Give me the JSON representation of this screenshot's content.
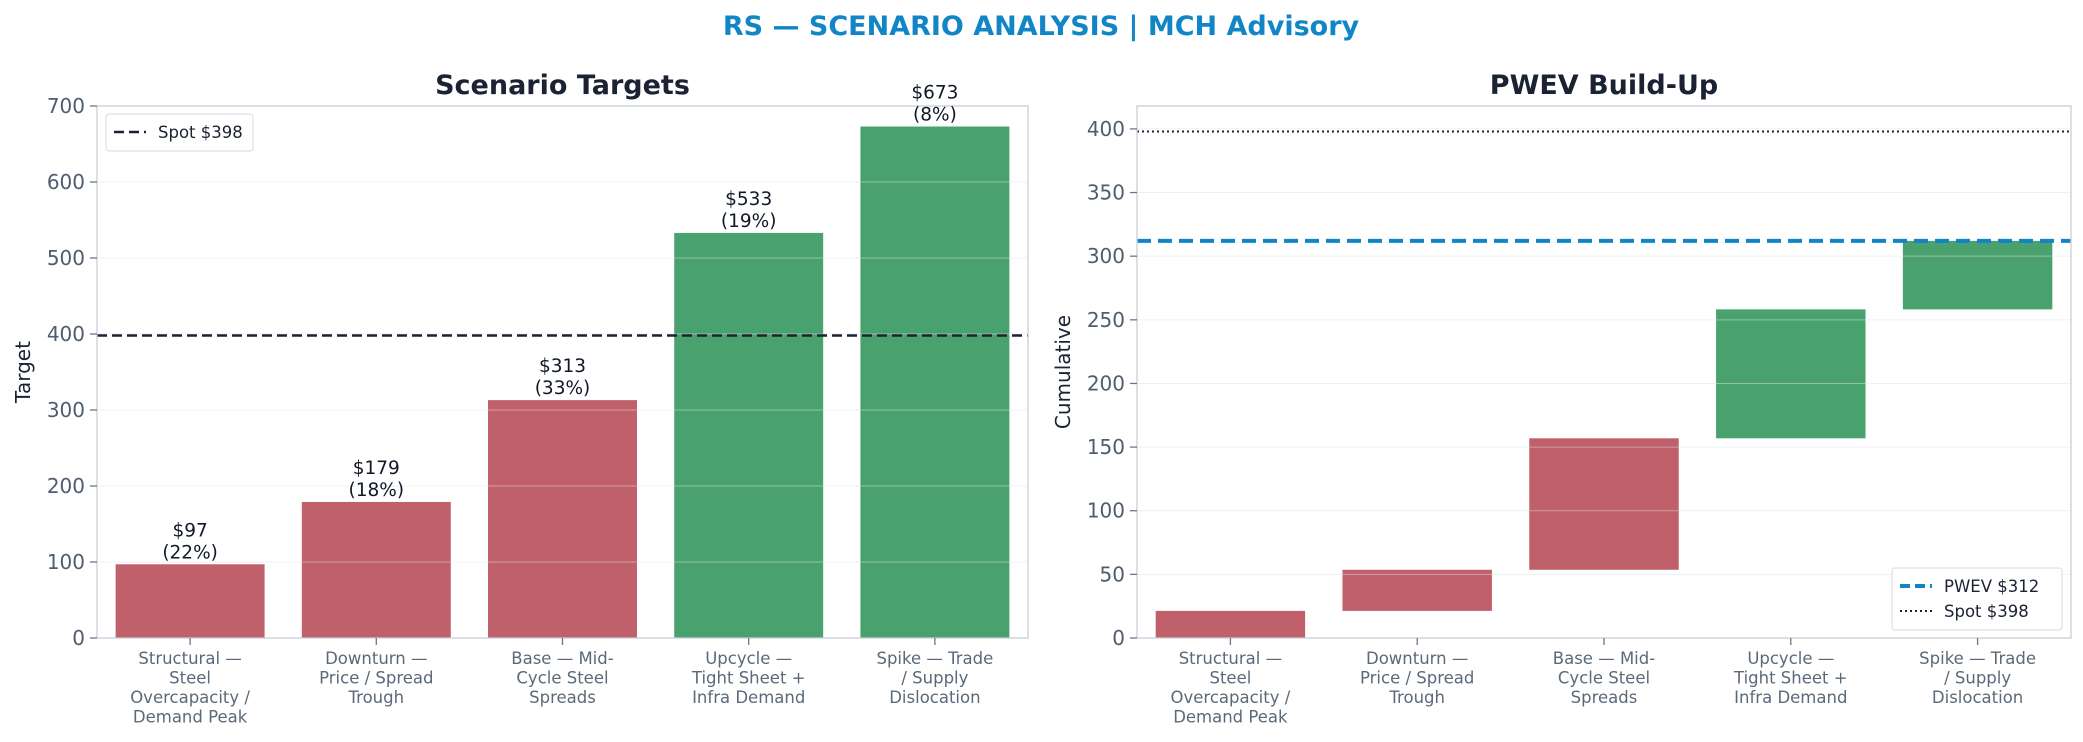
{
  "title": "RS — SCENARIO ANALYSIS | MCH Advisory",
  "colors": {
    "title": "#1185c6",
    "bear": "#c0606b",
    "bull": "#49a26d",
    "spot": "#1a2233",
    "pwev": "#1185c6",
    "axis": "#c8d0d8",
    "grid": "#eef1f4",
    "gridline_on_bar": "#e6e9ec"
  },
  "chart_data": [
    {
      "type": "bar",
      "title": "Scenario Targets",
      "ylabel": "Target",
      "xlabel": "",
      "ylim": [
        0,
        700
      ],
      "yticks": [
        0,
        100,
        200,
        300,
        400,
        500,
        600,
        700
      ],
      "categories": [
        "Structural — Steel Overcapacity / Demand Peak",
        "Downturn — Price / Spread Trough",
        "Base — Mid-Cycle Steel Spreads",
        "Upcycle — Tight Sheet + Infra Demand",
        "Spike — Trade / Supply Dislocation"
      ],
      "category_lines": [
        [
          "Structural —",
          "Steel",
          "Overcapacity /",
          "Demand Peak"
        ],
        [
          "Downturn —",
          "Price / Spread",
          "Trough"
        ],
        [
          "Base — Mid-",
          "Cycle Steel",
          "Spreads"
        ],
        [
          "Upcycle —",
          "Tight Sheet +",
          "Infra Demand"
        ],
        [
          "Spike — Trade",
          "/ Supply",
          "Dislocation"
        ]
      ],
      "values": [
        97,
        179,
        313,
        533,
        673
      ],
      "probabilities": [
        22,
        18,
        33,
        19,
        8
      ],
      "data_labels": [
        [
          "$97",
          "(22%)"
        ],
        [
          "$179",
          "(18%)"
        ],
        [
          "$313",
          "(33%)"
        ],
        [
          "$533",
          "(19%)"
        ],
        [
          "$673",
          "(8%)"
        ]
      ],
      "bar_colors": [
        "bear",
        "bear",
        "bear",
        "bull",
        "bull"
      ],
      "reference_lines": [
        {
          "label": "Spot $398",
          "y": 398,
          "style": "dashed"
        }
      ],
      "legend_position": "upper-left",
      "grid": true
    },
    {
      "type": "waterfall",
      "title": "PWEV Build-Up",
      "ylabel": "Cumulative",
      "xlabel": "",
      "ylim": [
        0,
        418
      ],
      "yticks": [
        0,
        50,
        100,
        150,
        200,
        250,
        300,
        350,
        400
      ],
      "categories": [
        "Structural — Steel Overcapacity / Demand Peak",
        "Downturn — Price / Spread Trough",
        "Base — Mid-Cycle Steel Spreads",
        "Upcycle — Tight Sheet + Infra Demand",
        "Spike — Trade / Supply Dislocation"
      ],
      "category_lines": [
        [
          "Structural —",
          "Steel",
          "Overcapacity /",
          "Demand Peak"
        ],
        [
          "Downturn —",
          "Price / Spread",
          "Trough"
        ],
        [
          "Base — Mid-",
          "Cycle Steel",
          "Spreads"
        ],
        [
          "Upcycle —",
          "Tight Sheet +",
          "Infra Demand"
        ],
        [
          "Spike — Trade",
          "/ Supply",
          "Dislocation"
        ]
      ],
      "bars": [
        {
          "bottom": 0,
          "top": 21.3
        },
        {
          "bottom": 21.3,
          "top": 53.6
        },
        {
          "bottom": 53.6,
          "top": 156.9
        },
        {
          "bottom": 156.9,
          "top": 258.2
        },
        {
          "bottom": 258.2,
          "top": 312.0
        }
      ],
      "bar_colors": [
        "bear",
        "bear",
        "bear",
        "bull",
        "bull"
      ],
      "reference_lines": [
        {
          "label": "PWEV $312",
          "y": 312,
          "style": "dashed-thick"
        },
        {
          "label": "Spot $398",
          "y": 398,
          "style": "dotted"
        }
      ],
      "legend_position": "lower-right",
      "grid": true
    }
  ]
}
